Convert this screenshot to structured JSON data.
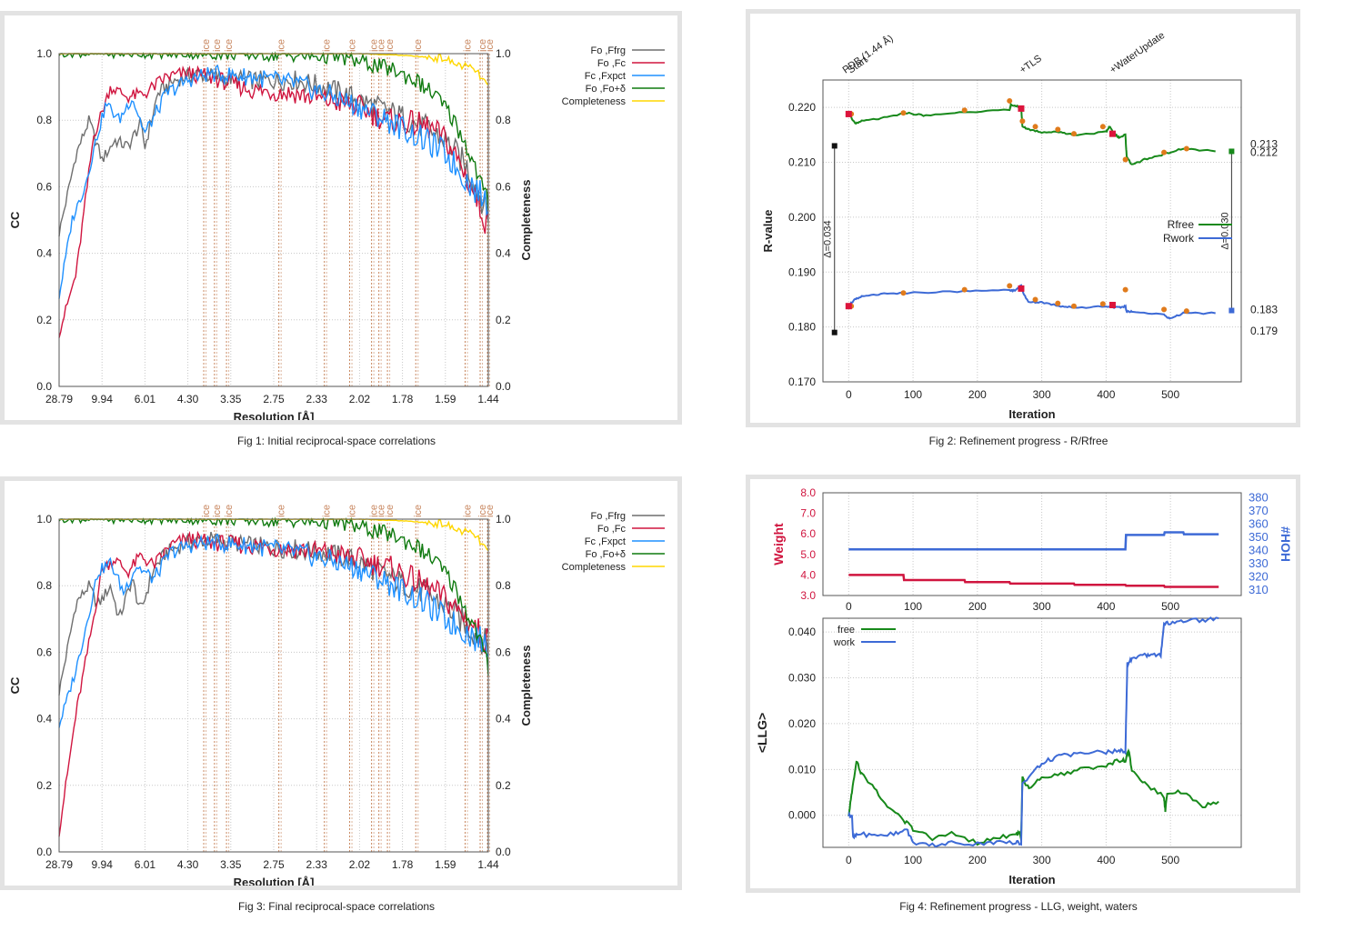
{
  "captions": {
    "fig1": "Fig 1:  Initial reciprocal-space correlations",
    "fig2": "Fig 2:  Refinement progress - R/Rfree",
    "fig3": "Fig 3:  Final reciprocal-space correlations",
    "fig4": "Fig 4:  Refinement progress - LLG, weight, waters"
  },
  "colors": {
    "fofrg": "#6e6e6e",
    "fofc": "#d0153f",
    "fcfxpct": "#1e90ff",
    "fofod": "#0f7a0f",
    "completeness": "#ffd700",
    "ice": "#c8865e",
    "rfree": "#17891a",
    "rwork": "#3d6ad6",
    "marker_red": "#dc143c",
    "marker_orange": "#e07b1c",
    "weight": "#d0153f",
    "hoh": "#3d6ad6"
  },
  "chart_data": [
    {
      "id": "fig1",
      "type": "line",
      "xlabel": "Resolution [Å]",
      "ylabel": "CC",
      "y2label": "Completeness",
      "x_ticks": [
        "28.79",
        "9.94",
        "6.01",
        "4.30",
        "3.35",
        "2.75",
        "2.33",
        "2.02",
        "1.78",
        "1.59",
        "1.44"
      ],
      "y_ticks": [
        "0.0",
        "0.2",
        "0.4",
        "0.6",
        "0.8",
        "1.0"
      ],
      "ylim": [
        0,
        1.0
      ],
      "ice_label": "ice",
      "ice_positions": [
        0.337,
        0.362,
        0.39,
        0.512,
        0.618,
        0.677,
        0.728,
        0.745,
        0.765,
        0.831,
        0.946,
        0.981,
        0.998
      ],
      "legend": [
        "Fo ,Ffrg",
        "Fo ,Fc",
        "Fc ,Fxpct",
        "Fo ,Fo+δ",
        "Completeness"
      ],
      "series": [
        {
          "name": "Fo ,Ffrg",
          "x": [
            0,
            0.04,
            0.07,
            0.1,
            0.13,
            0.16,
            0.19,
            0.2,
            0.23,
            0.27,
            0.32,
            0.37,
            0.45,
            0.55,
            0.62,
            0.7,
            0.78,
            0.85,
            0.9,
            0.95,
            1.0
          ],
          "y": [
            0.46,
            0.7,
            0.8,
            0.68,
            0.74,
            0.72,
            0.79,
            0.72,
            0.88,
            0.92,
            0.94,
            0.93,
            0.92,
            0.92,
            0.9,
            0.86,
            0.82,
            0.78,
            0.74,
            0.66,
            0.52
          ]
        },
        {
          "name": "Fo ,Fc",
          "x": [
            0,
            0.04,
            0.08,
            0.12,
            0.16,
            0.2,
            0.25,
            0.3,
            0.35,
            0.45,
            0.55,
            0.62,
            0.7,
            0.76,
            0.82,
            0.86,
            0.9,
            0.93,
            0.96,
            1.0
          ],
          "y": [
            0.16,
            0.34,
            0.75,
            0.9,
            0.87,
            0.88,
            0.93,
            0.94,
            0.93,
            0.89,
            0.88,
            0.86,
            0.84,
            0.8,
            0.79,
            0.78,
            0.74,
            0.68,
            0.6,
            0.48
          ]
        },
        {
          "name": "Fc ,Fxpct",
          "x": [
            0,
            0.03,
            0.06,
            0.09,
            0.11,
            0.14,
            0.17,
            0.2,
            0.25,
            0.3,
            0.35,
            0.45,
            0.55,
            0.62,
            0.7,
            0.78,
            0.85,
            0.9,
            0.95,
            1.0
          ],
          "y": [
            0.27,
            0.5,
            0.6,
            0.76,
            0.85,
            0.8,
            0.87,
            0.76,
            0.88,
            0.92,
            0.94,
            0.93,
            0.91,
            0.88,
            0.84,
            0.79,
            0.74,
            0.7,
            0.62,
            0.55
          ]
        },
        {
          "name": "Fo ,Fo+δ",
          "x": [
            0,
            0.3,
            0.55,
            0.65,
            0.72,
            0.78,
            0.83,
            0.88,
            0.92,
            0.95,
            0.98,
            1.0
          ],
          "y": [
            1.0,
            1.0,
            0.995,
            0.99,
            0.97,
            0.95,
            0.92,
            0.87,
            0.8,
            0.72,
            0.62,
            0.55
          ]
        },
        {
          "name": "Completeness",
          "x": [
            0,
            0.7,
            0.8,
            0.85,
            0.9,
            0.92,
            0.95,
            0.97,
            1.0
          ],
          "y": [
            1.0,
            1.0,
            0.995,
            0.99,
            0.985,
            0.97,
            0.96,
            0.95,
            0.9
          ]
        }
      ]
    },
    {
      "id": "fig2",
      "type": "line",
      "xlabel": "Iteration",
      "ylabel": "R-value",
      "x_ticks": [
        0,
        100,
        200,
        300,
        400,
        500
      ],
      "xlim": [
        -40,
        610
      ],
      "ylim": [
        0.17,
        0.225
      ],
      "y_ticks": [
        "0.170",
        "0.180",
        "0.190",
        "0.200",
        "0.210",
        "0.220"
      ],
      "annotations": [
        {
          "text": "PDB (1.44 Å)",
          "x": -5
        },
        {
          "text": "Start",
          "x": 3
        },
        {
          "text": "+TLS",
          "x": 270
        },
        {
          "text": "+WaterUpdate",
          "x": 410
        }
      ],
      "delta_left": {
        "label": "Δ=0.034",
        "top": 0.213,
        "bottom": 0.179,
        "x": -22
      },
      "delta_right": {
        "label": "Δ=0.030",
        "top": 0.212,
        "bottom": 0.183,
        "x": 595
      },
      "right_labels": [
        "0.213",
        "0.212",
        "0.183",
        "0.179"
      ],
      "legend": [
        "Rfree",
        "Rwork"
      ],
      "series": [
        {
          "name": "Rfree",
          "x": [
            0,
            10,
            20,
            50,
            90,
            120,
            180,
            250,
            252,
            268,
            270,
            280,
            300,
            330,
            350,
            400,
            405,
            415,
            420,
            430,
            432,
            440,
            460,
            490,
            520,
            570
          ],
          "y": [
            0.219,
            0.217,
            0.2175,
            0.218,
            0.219,
            0.2185,
            0.2192,
            0.2195,
            0.2205,
            0.22,
            0.2165,
            0.216,
            0.2155,
            0.2155,
            0.215,
            0.2155,
            0.2165,
            0.215,
            0.2145,
            0.215,
            0.211,
            0.2095,
            0.2105,
            0.2115,
            0.2125,
            0.212
          ]
        },
        {
          "name": "Rwork",
          "x": [
            0,
            10,
            20,
            50,
            90,
            180,
            250,
            255,
            268,
            272,
            280,
            300,
            330,
            350,
            400,
            420,
            430,
            432,
            440,
            490,
            500,
            520,
            570
          ],
          "y": [
            0.184,
            0.185,
            0.1855,
            0.186,
            0.1862,
            0.1865,
            0.1868,
            0.1865,
            0.1875,
            0.186,
            0.1845,
            0.1845,
            0.1838,
            0.1835,
            0.1838,
            0.1835,
            0.1838,
            0.1828,
            0.1828,
            0.1822,
            0.1815,
            0.1825,
            0.1825
          ]
        }
      ],
      "markers_red": [
        [
          0,
          0.2188
        ],
        [
          268,
          0.2198
        ],
        [
          410,
          0.2152
        ],
        [
          0,
          0.1838
        ],
        [
          268,
          0.187
        ],
        [
          410,
          0.184
        ]
      ],
      "markers_orange": [
        [
          4,
          0.2188
        ],
        [
          85,
          0.219
        ],
        [
          180,
          0.2195
        ],
        [
          250,
          0.2212
        ],
        [
          270,
          0.2175
        ],
        [
          290,
          0.2165
        ],
        [
          325,
          0.216
        ],
        [
          350,
          0.2152
        ],
        [
          395,
          0.2165
        ],
        [
          430,
          0.2105
        ],
        [
          490,
          0.2118
        ],
        [
          525,
          0.2125
        ],
        [
          4,
          0.1838
        ],
        [
          85,
          0.1862
        ],
        [
          180,
          0.1868
        ],
        [
          250,
          0.1875
        ],
        [
          290,
          0.185
        ],
        [
          325,
          0.1843
        ],
        [
          350,
          0.1838
        ],
        [
          395,
          0.1842
        ],
        [
          430,
          0.1868
        ],
        [
          490,
          0.1832
        ],
        [
          525,
          0.1829
        ]
      ],
      "end_squares": [
        [
          -22,
          0.213
        ],
        [
          -22,
          0.179
        ],
        [
          595,
          0.212
        ],
        [
          595,
          0.183
        ]
      ]
    },
    {
      "id": "fig3",
      "type": "line",
      "xlabel": "Resolution [Å]",
      "ylabel": "CC",
      "y2label": "Completeness",
      "x_ticks": [
        "28.79",
        "9.94",
        "6.01",
        "4.30",
        "3.35",
        "2.75",
        "2.33",
        "2.02",
        "1.78",
        "1.59",
        "1.44"
      ],
      "y_ticks": [
        "0.0",
        "0.2",
        "0.4",
        "0.6",
        "0.8",
        "1.0"
      ],
      "ylim": [
        0,
        1.0
      ],
      "ice_label": "ice",
      "ice_positions": [
        0.337,
        0.362,
        0.39,
        0.512,
        0.618,
        0.677,
        0.728,
        0.745,
        0.765,
        0.831,
        0.946,
        0.981,
        0.998
      ],
      "legend": [
        "Fo ,Ffrg",
        "Fo ,Fc",
        "Fc ,Fxpct",
        "Fo ,Fo+δ",
        "Completeness"
      ],
      "series": [
        {
          "name": "Fo ,Ffrg",
          "x": [
            0,
            0.04,
            0.07,
            0.09,
            0.12,
            0.14,
            0.17,
            0.19,
            0.22,
            0.25,
            0.3,
            0.35,
            0.45,
            0.55,
            0.62,
            0.7,
            0.78,
            0.85,
            0.9,
            0.95,
            1.0
          ],
          "y": [
            0.48,
            0.75,
            0.8,
            0.74,
            0.8,
            0.7,
            0.82,
            0.72,
            0.85,
            0.9,
            0.93,
            0.94,
            0.92,
            0.91,
            0.9,
            0.87,
            0.82,
            0.78,
            0.74,
            0.68,
            0.62
          ]
        },
        {
          "name": "Fo ,Fc",
          "x": [
            0,
            0.04,
            0.08,
            0.1,
            0.13,
            0.16,
            0.19,
            0.22,
            0.26,
            0.3,
            0.35,
            0.45,
            0.55,
            0.62,
            0.7,
            0.78,
            0.85,
            0.9,
            0.95,
            1.0
          ],
          "y": [
            0.06,
            0.42,
            0.7,
            0.85,
            0.88,
            0.84,
            0.89,
            0.86,
            0.92,
            0.94,
            0.93,
            0.92,
            0.91,
            0.9,
            0.88,
            0.85,
            0.8,
            0.76,
            0.7,
            0.63
          ]
        },
        {
          "name": "Fc ,Fxpct",
          "x": [
            0,
            0.04,
            0.07,
            0.09,
            0.12,
            0.15,
            0.18,
            0.22,
            0.26,
            0.3,
            0.35,
            0.45,
            0.55,
            0.62,
            0.7,
            0.78,
            0.85,
            0.9,
            0.95,
            1.0
          ],
          "y": [
            0.38,
            0.55,
            0.72,
            0.84,
            0.87,
            0.78,
            0.86,
            0.82,
            0.9,
            0.92,
            0.93,
            0.92,
            0.9,
            0.88,
            0.85,
            0.8,
            0.75,
            0.7,
            0.66,
            0.62
          ]
        },
        {
          "name": "Fo ,Fo+δ",
          "x": [
            0,
            0.3,
            0.55,
            0.65,
            0.72,
            0.78,
            0.83,
            0.88,
            0.92,
            0.95,
            0.98,
            1.0
          ],
          "y": [
            1.0,
            1.0,
            0.995,
            0.99,
            0.97,
            0.95,
            0.92,
            0.87,
            0.8,
            0.72,
            0.64,
            0.55
          ]
        },
        {
          "name": "Completeness",
          "x": [
            0,
            0.7,
            0.8,
            0.85,
            0.9,
            0.92,
            0.95,
            0.97,
            1.0
          ],
          "y": [
            1.0,
            1.0,
            0.995,
            0.99,
            0.985,
            0.97,
            0.96,
            0.95,
            0.9
          ]
        }
      ]
    },
    {
      "id": "fig4",
      "type": "line",
      "top": {
        "ylabel": "Weight",
        "y2label": "#HOH",
        "ylim": [
          3.0,
          8.0
        ],
        "y_ticks": [
          "3.0",
          "4.0",
          "5.0",
          "6.0",
          "7.0",
          "8.0"
        ],
        "y2lim": [
          305,
          383
        ],
        "y2_ticks": [
          "310",
          "320",
          "330",
          "340",
          "350",
          "360",
          "370",
          "380"
        ],
        "x_ticks": [
          0,
          100,
          200,
          300,
          400,
          500
        ],
        "xlim": [
          -40,
          610
        ],
        "series": [
          {
            "name": "Weight",
            "x": [
              0,
              85,
              86,
              180,
              181,
              250,
              251,
              350,
              351,
              430,
              431,
              490,
              491,
              575
            ],
            "y": [
              4.0,
              4.0,
              3.75,
              3.75,
              3.65,
              3.65,
              3.58,
              3.58,
              3.52,
              3.52,
              3.48,
              3.48,
              3.42,
              3.42
            ]
          },
          {
            "name": "#HOH",
            "x": [
              0,
              430,
              431,
              490,
              491,
              520,
              521,
              575
            ],
            "y": [
              340,
              340,
              351,
              351,
              353,
              353,
              351.5,
              351.5
            ]
          }
        ]
      },
      "bottom": {
        "xlabel": "Iteration",
        "ylabel": "<LLG>",
        "ylim": [
          -0.007,
          0.043
        ],
        "y_ticks": [
          "0.000",
          "0.010",
          "0.020",
          "0.030",
          "0.040"
        ],
        "x_ticks": [
          0,
          100,
          200,
          300,
          400,
          500
        ],
        "xlim": [
          -40,
          610
        ],
        "legend": [
          "free",
          "work"
        ],
        "series": [
          {
            "name": "free",
            "x": [
              0,
              5,
              12,
              20,
              40,
              60,
              85,
              100,
              130,
              160,
              200,
              230,
              260,
              265,
              268,
              270,
              280,
              300,
              330,
              360,
              400,
              420,
              430,
              435,
              440,
              460,
              490,
              492,
              495,
              520,
              550,
              575
            ],
            "y": [
              0,
              0.005,
              0.012,
              0.009,
              0.006,
              0.002,
              -0.001,
              -0.003,
              -0.005,
              -0.004,
              -0.006,
              -0.005,
              -0.004,
              -0.004,
              -0.005,
              0.008,
              0.006,
              0.008,
              0.009,
              0.01,
              0.011,
              0.012,
              0.012,
              0.014,
              0.01,
              0.007,
              0.004,
              0.001,
              0.005,
              0.005,
              0.002,
              0.003
            ]
          },
          {
            "name": "work",
            "x": [
              0,
              5,
              7,
              15,
              40,
              70,
              90,
              100,
              130,
              160,
              200,
              230,
              260,
              268,
              270,
              290,
              310,
              330,
              360,
              400,
              420,
              430,
              433,
              440,
              460,
              470,
              485,
              490,
              500,
              520,
              550,
              575
            ],
            "y": [
              0,
              0,
              -0.005,
              -0.004,
              -0.0045,
              -0.004,
              -0.003,
              -0.006,
              -0.0065,
              -0.006,
              -0.0062,
              -0.006,
              -0.006,
              -0.006,
              0.007,
              0.01,
              0.012,
              0.013,
              0.0135,
              0.0138,
              0.014,
              0.014,
              0.033,
              0.034,
              0.035,
              0.035,
              0.035,
              0.042,
              0.042,
              0.0425,
              0.0425,
              0.043
            ]
          }
        ]
      }
    }
  ]
}
